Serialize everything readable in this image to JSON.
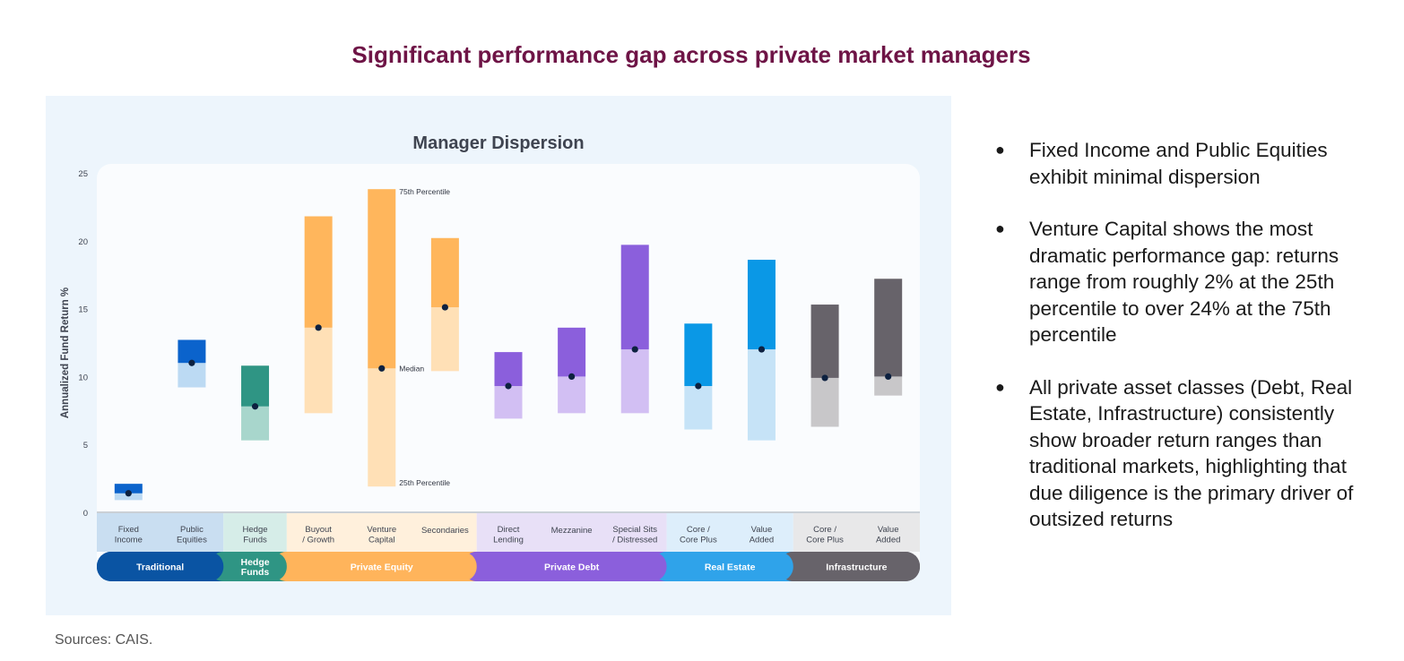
{
  "page": {
    "title": "Significant performance gap across private market managers",
    "source": "Sources: CAIS."
  },
  "bullets": [
    "Fixed Income and Public Equities exhibit minimal dispersion",
    "Venture Capital shows the most dramatic performance gap: returns range from roughly 2% at the 25th percentile to over 24% at the 75th percentile",
    "All private asset classes (Debt, Real Estate, Infrastructure) consistently show broader return ranges than traditional markets, highlighting that due diligence is the primary driver of outsized returns"
  ],
  "chart_data": {
    "type": "floating-bar",
    "title": "Manager Dispersion",
    "ylabel": "Annualized Fund Return %",
    "ylim": [
      0,
      25
    ],
    "yticks": [
      0,
      5,
      10,
      15,
      20,
      25
    ],
    "annotations": {
      "p75": "75th Percentile",
      "median": "Median",
      "p25": "25th Percentile"
    },
    "groups": [
      {
        "name": "Traditional",
        "dark": "#0a54a3",
        "light": "#c9def1",
        "members": 2
      },
      {
        "name": "Hedge Funds",
        "dark": "#2f9584",
        "light": "#d6ede8",
        "members": 1
      },
      {
        "name": "Private Equity",
        "dark": "#ffb45b",
        "light": "#fff0dc",
        "members": 3
      },
      {
        "name": "Private Debt",
        "dark": "#8b5fdc",
        "light": "#e8e0f7",
        "members": 3
      },
      {
        "name": "Real Estate",
        "dark": "#2fa3ea",
        "light": "#ddeefb",
        "members": 2
      },
      {
        "name": "Infrastructure",
        "dark": "#67636a",
        "light": "#e8e8e9",
        "members": 2
      }
    ],
    "categories": [
      {
        "label": "Fixed Income",
        "group": 0,
        "p25": 0.9,
        "median": 1.4,
        "p75": 2.1,
        "upper": "#0b63cc",
        "lower": "#bcdaf3"
      },
      {
        "label": "Public Equities",
        "group": 0,
        "p25": 9.2,
        "median": 11.0,
        "p75": 12.7,
        "upper": "#0b63cc",
        "lower": "#bcdaf3"
      },
      {
        "label": "Hedge Funds",
        "group": 1,
        "p25": 5.3,
        "median": 7.8,
        "p75": 10.8,
        "upper": "#2f9584",
        "lower": "#a8d6cc"
      },
      {
        "label": "Buyout / Growth",
        "group": 2,
        "p25": 7.3,
        "median": 13.6,
        "p75": 21.8,
        "upper": "#ffb65c",
        "lower": "#ffe0b6"
      },
      {
        "label": "Venture Capital",
        "group": 2,
        "p25": 1.9,
        "median": 10.6,
        "p75": 23.8,
        "upper": "#ffb65c",
        "lower": "#ffe0b6"
      },
      {
        "label": "Secondaries",
        "group": 2,
        "p25": 10.4,
        "median": 15.1,
        "p75": 20.2,
        "upper": "#ffb65c",
        "lower": "#ffe0b6"
      },
      {
        "label": "Direct Lending",
        "group": 3,
        "p25": 6.9,
        "median": 9.3,
        "p75": 11.8,
        "upper": "#8b5fdc",
        "lower": "#d2bff3"
      },
      {
        "label": "Mezzanine",
        "group": 3,
        "p25": 7.3,
        "median": 10.0,
        "p75": 13.6,
        "upper": "#8b5fdc",
        "lower": "#d2bff3"
      },
      {
        "label": "Special Sits / Distressed",
        "group": 3,
        "p25": 7.3,
        "median": 12.0,
        "p75": 19.7,
        "upper": "#8b5fdc",
        "lower": "#d2bff3"
      },
      {
        "label": "Core / Core Plus",
        "group": 4,
        "p25": 6.1,
        "median": 9.3,
        "p75": 13.9,
        "upper": "#0a98e6",
        "lower": "#c6e3f7"
      },
      {
        "label": "Value Added",
        "group": 4,
        "p25": 5.3,
        "median": 12.0,
        "p75": 18.6,
        "upper": "#0a98e6",
        "lower": "#c6e3f7"
      },
      {
        "label": "Core / Core Plus",
        "group": 5,
        "p25": 6.3,
        "median": 9.9,
        "p75": 15.3,
        "upper": "#67636a",
        "lower": "#c8c7c9"
      },
      {
        "label": "Value Added",
        "group": 5,
        "p25": 8.6,
        "median": 10.0,
        "p75": 17.2,
        "upper": "#67636a",
        "lower": "#c8c7c9"
      }
    ]
  }
}
